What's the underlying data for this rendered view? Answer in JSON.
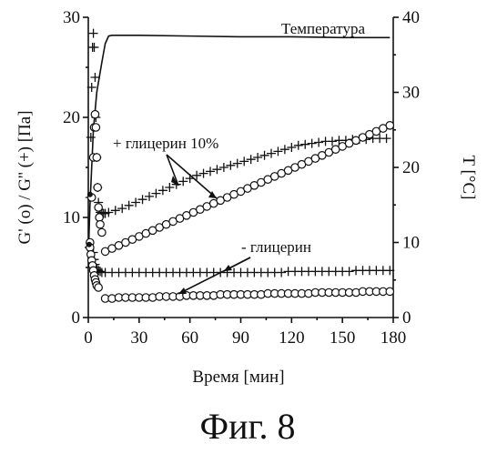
{
  "figure_caption": "Фиг. 8",
  "chart_data": {
    "type": "scatter",
    "title": "",
    "xlabel": "Время [мин]",
    "ylabel_left": "G' (o)  /  G'' (+)  [Па]",
    "ylabel_right": "T  [°C]",
    "xlim": [
      0,
      180
    ],
    "ylim_left": [
      0,
      30
    ],
    "ylim_right": [
      0,
      40
    ],
    "x_ticks": [
      "0",
      "30",
      "60",
      "90",
      "120",
      "150",
      "180"
    ],
    "y_ticks_left": [
      "0",
      "10",
      "20",
      "30"
    ],
    "y_ticks_right": [
      "0",
      "10",
      "20",
      "30",
      "40"
    ],
    "grid": false,
    "annotations": {
      "temperature": "Температура",
      "with_glycerin": "+ глицерин 10%",
      "without_glycerin": "- глицерин"
    },
    "series": [
      {
        "name": "Температура",
        "axis": "right",
        "marker": "line",
        "x": [
          0,
          1,
          3,
          5,
          8,
          10,
          12,
          14,
          30,
          60,
          90,
          120,
          150,
          178
        ],
        "y": [
          8,
          15,
          25,
          30,
          34,
          36.5,
          37.5,
          37.6,
          37.6,
          37.5,
          37.4,
          37.4,
          37.3,
          37.3
        ]
      },
      {
        "name": "G'' + глицерин 10%",
        "axis": "left",
        "marker": "plus",
        "x": [
          0.5,
          1,
          1.5,
          2,
          2.5,
          3,
          3.5,
          4,
          4.5,
          5,
          5.5,
          6,
          6.5,
          7,
          8,
          9,
          10,
          12,
          16,
          20,
          24,
          28,
          32,
          36,
          40,
          44,
          48,
          52,
          56,
          60,
          64,
          68,
          72,
          76,
          80,
          84,
          88,
          92,
          96,
          100,
          104,
          108,
          112,
          116,
          120,
          124,
          128,
          132,
          136,
          140,
          144,
          148,
          152,
          156,
          160,
          164,
          168,
          172,
          176
        ],
        "y": [
          7,
          12,
          18,
          23,
          27,
          28.4,
          27,
          24,
          20,
          16,
          13,
          11.5,
          10.8,
          10.5,
          10.4,
          10.4,
          10.4,
          10.5,
          10.7,
          10.9,
          11.2,
          11.5,
          11.8,
          12.1,
          12.4,
          12.7,
          13.0,
          13.3,
          13.6,
          13.9,
          14.2,
          14.4,
          14.6,
          14.8,
          15.0,
          15.2,
          15.4,
          15.6,
          15.8,
          16.0,
          16.2,
          16.4,
          16.6,
          16.8,
          17.0,
          17.2,
          17.3,
          17.4,
          17.5,
          17.6,
          17.6,
          17.7,
          17.7,
          17.8,
          17.8,
          17.8,
          17.9,
          17.9,
          17.9
        ]
      },
      {
        "name": "G' + глицерин 10%",
        "axis": "left",
        "marker": "circle",
        "x": [
          1,
          2,
          3,
          3.5,
          4,
          4.5,
          5,
          5.5,
          6,
          6.5,
          7,
          8,
          10,
          14,
          18,
          22,
          26,
          30,
          34,
          38,
          42,
          46,
          50,
          54,
          58,
          62,
          66,
          70,
          74,
          78,
          82,
          86,
          90,
          94,
          98,
          102,
          106,
          110,
          114,
          118,
          122,
          126,
          130,
          134,
          138,
          142,
          146,
          150,
          154,
          158,
          162,
          166,
          170,
          174,
          178
        ],
        "y": [
          7.5,
          12,
          16,
          19,
          20.3,
          19,
          16,
          13,
          11,
          10,
          9.3,
          8.5,
          6.6,
          6.9,
          7.2,
          7.5,
          7.8,
          8.1,
          8.4,
          8.7,
          9.0,
          9.3,
          9.6,
          9.9,
          10.2,
          10.5,
          10.8,
          11.1,
          11.4,
          11.7,
          12.0,
          12.3,
          12.6,
          12.9,
          13.2,
          13.5,
          13.8,
          14.1,
          14.4,
          14.7,
          15.0,
          15.3,
          15.6,
          15.9,
          16.2,
          16.5,
          16.8,
          17.1,
          17.4,
          17.7,
          18.0,
          18.3,
          18.6,
          18.9,
          19.2
        ]
      },
      {
        "name": "G'' - глицерин",
        "axis": "left",
        "marker": "plus",
        "x": [
          3,
          3.5,
          4,
          4.5,
          5,
          6,
          7,
          8,
          10,
          14,
          18,
          22,
          26,
          30,
          34,
          38,
          42,
          46,
          50,
          54,
          58,
          62,
          66,
          70,
          74,
          78,
          82,
          86,
          90,
          94,
          98,
          102,
          106,
          110,
          114,
          118,
          122,
          126,
          130,
          134,
          138,
          142,
          146,
          150,
          154,
          158,
          162,
          166,
          170,
          174,
          178
        ],
        "y": [
          6.5,
          5.8,
          5.3,
          5.0,
          4.8,
          4.7,
          4.6,
          4.5,
          4.5,
          4.5,
          4.5,
          4.5,
          4.5,
          4.5,
          4.5,
          4.5,
          4.5,
          4.5,
          4.5,
          4.5,
          4.5,
          4.5,
          4.5,
          4.5,
          4.5,
          4.5,
          4.5,
          4.5,
          4.5,
          4.5,
          4.5,
          4.5,
          4.5,
          4.5,
          4.5,
          4.6,
          4.6,
          4.6,
          4.6,
          4.6,
          4.6,
          4.6,
          4.6,
          4.6,
          4.6,
          4.7,
          4.7,
          4.7,
          4.7,
          4.7,
          4.7
        ]
      },
      {
        "name": "G' - глицерин",
        "axis": "left",
        "marker": "circle",
        "x": [
          1,
          1.5,
          2,
          2.5,
          3,
          3.5,
          4,
          4.5,
          5,
          6,
          10,
          14,
          18,
          22,
          26,
          30,
          34,
          38,
          42,
          46,
          50,
          54,
          58,
          62,
          66,
          70,
          74,
          78,
          82,
          86,
          90,
          94,
          98,
          102,
          106,
          110,
          114,
          118,
          122,
          126,
          130,
          134,
          138,
          142,
          146,
          150,
          154,
          158,
          162,
          166,
          170,
          174,
          178
        ],
        "y": [
          7,
          6.3,
          5.7,
          5.2,
          4.7,
          4.2,
          3.8,
          3.5,
          3.2,
          3.0,
          1.9,
          1.9,
          2.0,
          2.0,
          2.0,
          2.0,
          2.0,
          2.0,
          2.1,
          2.1,
          2.1,
          2.1,
          2.2,
          2.2,
          2.2,
          2.2,
          2.2,
          2.3,
          2.3,
          2.3,
          2.3,
          2.3,
          2.3,
          2.3,
          2.4,
          2.4,
          2.4,
          2.4,
          2.4,
          2.4,
          2.4,
          2.5,
          2.5,
          2.5,
          2.5,
          2.5,
          2.5,
          2.5,
          2.6,
          2.6,
          2.6,
          2.6,
          2.6
        ]
      }
    ]
  }
}
